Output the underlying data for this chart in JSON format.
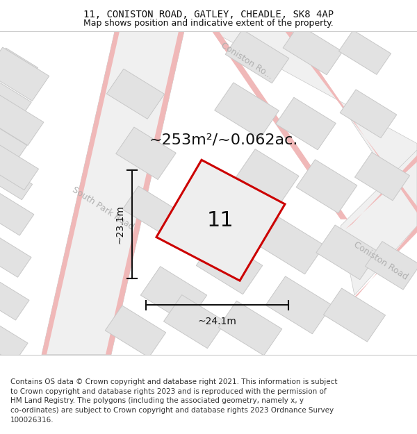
{
  "title_line1": "11, CONISTON ROAD, GATLEY, CHEADLE, SK8 4AP",
  "title_line2": "Map shows position and indicative extent of the property.",
  "area_text": "~253m²/~0.062ac.",
  "property_number": "11",
  "dim_width": "~24.1m",
  "dim_height": "~23.1m",
  "footer_lines": [
    "Contains OS data © Crown copyright and database right 2021. This information is subject",
    "to Crown copyright and database rights 2023 and is reproduced with the permission of",
    "HM Land Registry. The polygons (including the associated geometry, namely x, y",
    "co-ordinates) are subject to Crown copyright and database rights 2023 Ordnance Survey",
    "100026316."
  ],
  "map_bg": "#f7f7f7",
  "building_fill": "#e2e2e2",
  "building_edge": "#c8c8c8",
  "road_fill": "#f0f0f0",
  "pink": "#f0b8b8",
  "property_fill": "#eeeeee",
  "property_outline": "#cc0000",
  "label_color": "#b0b0b0",
  "text_color": "#111111",
  "footer_color": "#333333",
  "title_fs": 10,
  "sub_fs": 9,
  "area_fs": 16,
  "num_fs": 22,
  "footer_fs": 7.5,
  "road_label_fs": 9,
  "dim_fs": 10
}
